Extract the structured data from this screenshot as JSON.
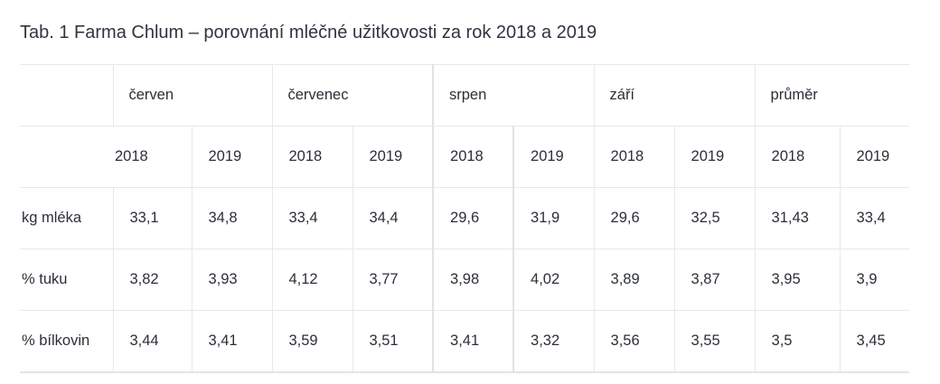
{
  "caption": "Tab. 1 Farma Chlum – porovnání mléčné užitkovosti za rok 2018 a 2019",
  "table": {
    "months": [
      "červen",
      "červenec",
      "srpen",
      "září",
      "průměr"
    ],
    "years": [
      "2018",
      "2019",
      "2018",
      "2019",
      "2018",
      "2019",
      "2018",
      "2019",
      "2018",
      "2019"
    ],
    "rows": [
      {
        "label": "kg mléka",
        "values": [
          "33,1",
          "34,8",
          "33,4",
          "34,4",
          "29,6",
          "31,9",
          "29,6",
          "32,5",
          "31,43",
          "33,4"
        ]
      },
      {
        "label": "% tuku",
        "values": [
          "3,82",
          "3,93",
          "4,12",
          "3,77",
          "3,98",
          "4,02",
          "3,89",
          "3,87",
          "3,95",
          "3,9"
        ]
      },
      {
        "label": "% bílkovin",
        "values": [
          "3,44",
          "3,41",
          "3,59",
          "3,51",
          "3,41",
          "3,32",
          "3,56",
          "3,55",
          "3,5",
          "3,45"
        ]
      }
    ]
  }
}
